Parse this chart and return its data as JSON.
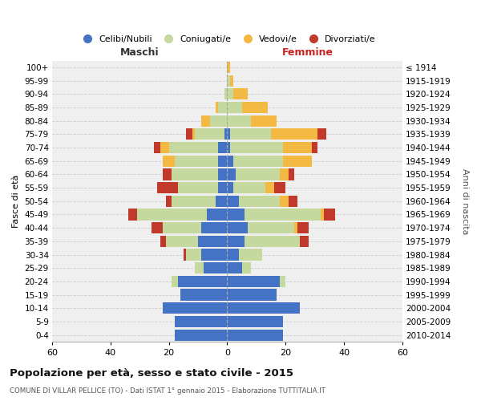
{
  "age_groups": [
    "0-4",
    "5-9",
    "10-14",
    "15-19",
    "20-24",
    "25-29",
    "30-34",
    "35-39",
    "40-44",
    "45-49",
    "50-54",
    "55-59",
    "60-64",
    "65-69",
    "70-74",
    "75-79",
    "80-84",
    "85-89",
    "90-94",
    "95-99",
    "100+"
  ],
  "birth_years": [
    "2010-2014",
    "2005-2009",
    "2000-2004",
    "1995-1999",
    "1990-1994",
    "1985-1989",
    "1980-1984",
    "1975-1979",
    "1970-1974",
    "1965-1969",
    "1960-1964",
    "1955-1959",
    "1950-1954",
    "1945-1949",
    "1940-1944",
    "1935-1939",
    "1930-1934",
    "1925-1929",
    "1920-1924",
    "1915-1919",
    "≤ 1914"
  ],
  "males": {
    "celibi": [
      18,
      18,
      22,
      16,
      17,
      8,
      9,
      10,
      9,
      7,
      4,
      3,
      3,
      3,
      3,
      1,
      0,
      0,
      0,
      0,
      0
    ],
    "coniugati": [
      0,
      0,
      0,
      0,
      2,
      3,
      5,
      11,
      13,
      24,
      15,
      14,
      16,
      15,
      17,
      10,
      6,
      3,
      1,
      0,
      0
    ],
    "vedovi": [
      0,
      0,
      0,
      0,
      0,
      0,
      0,
      0,
      0,
      0,
      0,
      0,
      0,
      4,
      3,
      1,
      3,
      1,
      0,
      0,
      0
    ],
    "divorziati": [
      0,
      0,
      0,
      0,
      0,
      0,
      1,
      2,
      4,
      3,
      2,
      7,
      3,
      0,
      2,
      2,
      0,
      0,
      0,
      0,
      0
    ]
  },
  "females": {
    "nubili": [
      19,
      19,
      25,
      17,
      18,
      5,
      4,
      6,
      7,
      6,
      4,
      2,
      3,
      2,
      1,
      1,
      0,
      0,
      0,
      0,
      0
    ],
    "coniugate": [
      0,
      0,
      0,
      0,
      2,
      3,
      8,
      19,
      16,
      26,
      14,
      11,
      15,
      17,
      18,
      14,
      8,
      5,
      2,
      1,
      0
    ],
    "vedove": [
      0,
      0,
      0,
      0,
      0,
      0,
      0,
      0,
      1,
      1,
      3,
      3,
      3,
      10,
      10,
      16,
      9,
      9,
      5,
      1,
      1
    ],
    "divorziate": [
      0,
      0,
      0,
      0,
      0,
      0,
      0,
      3,
      4,
      4,
      3,
      4,
      2,
      0,
      2,
      3,
      0,
      0,
      0,
      0,
      0
    ]
  },
  "color_celibi": "#4472c4",
  "color_coniugati": "#c5d89d",
  "color_vedovi": "#f4b942",
  "color_divorziati": "#c0392b",
  "xlim": 60,
  "title": "Popolazione per età, sesso e stato civile - 2015",
  "subtitle": "COMUNE DI VILLAR PELLICE (TO) - Dati ISTAT 1° gennaio 2015 - Elaborazione TUTTITALIA.IT",
  "xlabel_left": "Maschi",
  "xlabel_right": "Femmine",
  "ylabel_left": "Fasce di età",
  "ylabel_right": "Anni di nascita",
  "bg_color": "#efefef",
  "bar_height": 0.85,
  "legend_labels": [
    "Celibi/Nubili",
    "Coniugati/e",
    "Vedovi/e",
    "Divorziati/e"
  ]
}
